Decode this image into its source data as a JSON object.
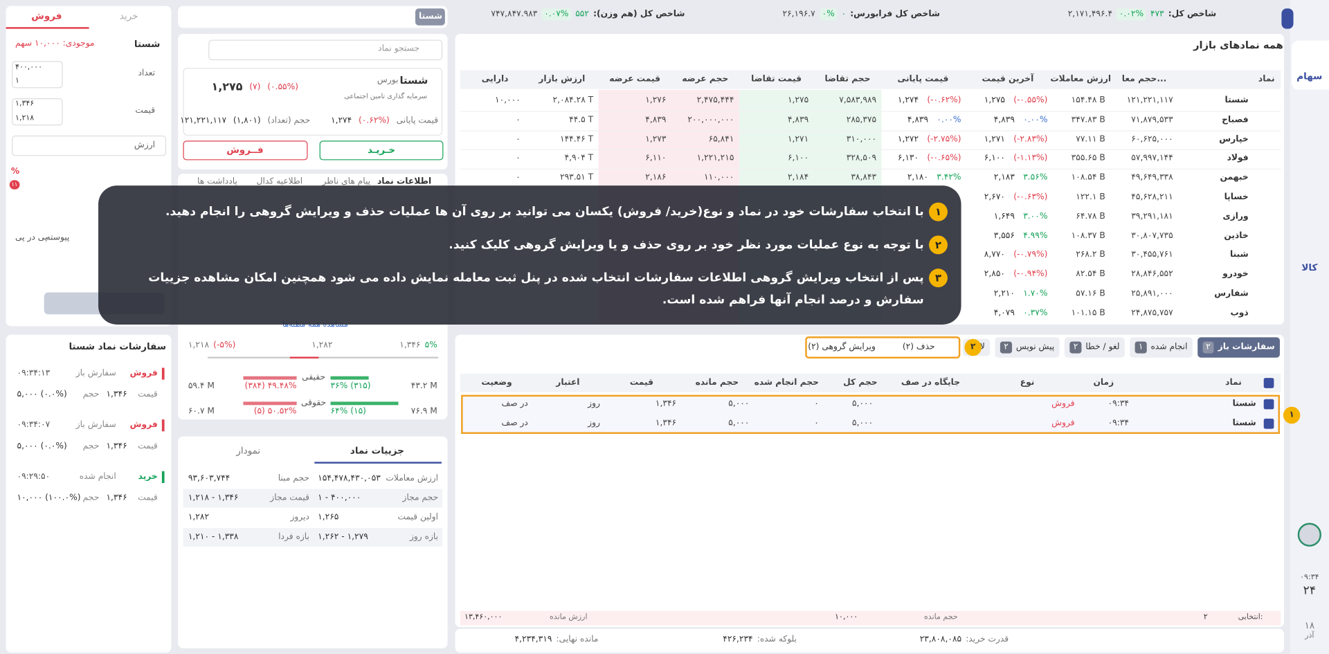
{
  "sidebar": {
    "stocks": "سهام",
    "commodity": "کالا",
    "time": "۰۹:۳۴",
    "day": "۲۴",
    "day2": "۱۸",
    "month": "آذر"
  },
  "indices": [
    {
      "label": "شاخص کل:",
      "change": "۴۷۳",
      "percent": "۰.۰۲%",
      "value": "۲,۱۷۱,۴۹۶.۴"
    },
    {
      "label": "شاخص کل فرابورس:",
      "change": "۰",
      "percent": "۰%",
      "value": "۲۶,۱۹۶.۷"
    },
    {
      "label": "شاخص کل (هم وزن):",
      "change": "۵۵۲",
      "percent": "۰.۰۷%",
      "value": "۷۴۷,۸۴۷.۹۸۳"
    }
  ],
  "market": {
    "title": "همه نمادهای بازار",
    "headers": [
      "نماد",
      "حجم معا...",
      "ارزش معاملات",
      "آخرین قیمت",
      "قیمت پایانی",
      "حجم تقاضا",
      "قیمت تقاضا",
      "حجم عرضه",
      "قیمت عرضه",
      "ارزش بازار",
      "دارایی"
    ],
    "rows": [
      [
        "شستا",
        "۱۲۱,۲۲۱,۱۱۷",
        "۱۵۴.۴۸ B",
        [
          "۱,۲۷۵",
          "(۰.۵۵%-)"
        ],
        [
          "۱,۲۷۴",
          "(۰.۶۲%-)"
        ],
        "۷,۵۸۳,۹۸۹",
        "۱,۲۷۵",
        "۲,۴۷۵,۴۴۴",
        "۱,۲۷۶",
        "۲,۰۸۴.۲۸ T",
        "۱۰,۰۰۰"
      ],
      [
        "فصباح",
        "۷۱,۸۷۹,۵۳۳",
        "۳۴۷.۸۳ B",
        [
          "۴,۸۳۹",
          "۰.۰۰%"
        ],
        [
          "۴,۸۳۹",
          "۰.۰۰%"
        ],
        "۲۸۵,۳۷۵",
        "۴,۸۳۹",
        "۲۰۰,۰۰۰,۰۰۰",
        "۴,۸۳۹",
        "۴۴.۵ T",
        "۰"
      ],
      [
        "خپارس",
        "۶۰,۶۲۵,۰۰۰",
        "۷۷.۱۱ B",
        [
          "۱,۲۷۱",
          "(۲.۸۳%-)"
        ],
        [
          "۱,۲۷۲",
          "(۲.۷۵%-)"
        ],
        "۳۱۰,۰۰۰",
        "۱,۲۷۱",
        "۶۵,۸۴۱",
        "۱,۲۷۳",
        "۱۴۴.۴۶ T",
        "۰"
      ],
      [
        "فولاد",
        "۵۷,۹۹۷,۱۴۴",
        "۳۵۵.۶۵ B",
        [
          "۶,۱۰۰",
          "(۱.۱۳%-)"
        ],
        [
          "۶,۱۳۰",
          "(۰.۶۵%-)"
        ],
        "۳۲۸,۵۰۹",
        "۶,۱۰۰",
        "۱,۲۲۱,۲۱۵",
        "۶,۱۱۰",
        "۴,۹۰۴ T",
        "۰"
      ],
      [
        "خبهمن",
        "۴۹,۶۴۹,۳۳۸",
        "۱۰۸.۵۴ B",
        [
          "۲,۱۸۳",
          "۳.۵۶%"
        ],
        [
          "۲,۱۸۰",
          "۳.۴۲%"
        ],
        "۳۸,۸۴۳",
        "۲,۱۸۴",
        "۱۱۰,۰۰۰",
        "۲,۱۸۶",
        "۲۹۳.۵۱ T",
        "۰"
      ],
      [
        "خساپا",
        "۴۵,۶۲۸,۲۱۱",
        "۱۲۲.۱ B",
        [
          "۲,۶۷۰",
          "(۰.۶۳%-)"
        ]
      ],
      [
        "ورازی",
        "۳۹,۲۹۱,۱۸۱",
        "۶۴.۷۸ B",
        [
          "۱,۶۴۹",
          "۳.۰۰%"
        ]
      ],
      [
        "خاذین",
        "۳۰,۸۰۷,۷۳۵",
        "۱۰۸.۳۷ B",
        [
          "۳,۵۵۶",
          "۴.۹۹%"
        ]
      ],
      [
        "شبنا",
        "۳۰,۴۵۵,۷۶۱",
        "۲۶۸.۲ B",
        [
          "۸,۷۷۰",
          "(۰.۷۹%-)"
        ]
      ],
      [
        "خودرو",
        "۲۸,۸۴۶,۵۵۲",
        "۸۲.۵۴ B",
        [
          "۲,۸۵۰",
          "(۰.۹۴%-)"
        ]
      ],
      [
        "شفارس",
        "۲۵,۸۹۱,۰۰۰",
        "۵۷.۱۶ B",
        [
          "۲,۲۱۰",
          "۱.۷۰%"
        ]
      ],
      [
        "ذوب",
        "۲۴,۸۷۵,۷۵۷",
        "۱۰۱.۱۵ B",
        [
          "۴,۰۷۹",
          "۰.۳۷%"
        ]
      ]
    ]
  },
  "overlay": {
    "steps": [
      {
        "number": "۱",
        "text": "با انتخاب سفارشات خود در نماد و نوع(خرید/ فروش) یکسان می توانید بر روی آن ها عملیات حذف و ویرایش گروهی را انجام دهید."
      },
      {
        "number": "۲",
        "text": "با توجه به نوع عملیات مورد نظر خود بر روی حذف و یا ویرایش گروهی کلیک کنید."
      },
      {
        "number": "۳",
        "text": "پس از انتخاب ویرایش گروهی اطلاعات سفارشات انتخاب شده در پنل ثبت معامله نمایش داده می شود همچنین امکان مشاهده جزییات سفارش و درصد انجام آنها فراهم شده است."
      }
    ]
  },
  "order_form": {
    "tabs": [
      "فروش",
      "خرید"
    ],
    "symbol": "شستا",
    "stock": "موجودی: ۱۰,۰۰۰ سهم",
    "quantity_label": "تعداد",
    "quantity_max": "۴۰۰,۰۰۰",
    "quantity_min": "۱",
    "price_label": "قیمت",
    "price_max": "۱,۳۴۶",
    "price_min": "۱,۲۱۸",
    "value_label": "ارزش",
    "percent": "%",
    "slider": "۱۱",
    "modes": [
      "پیوسته",
      "پی در پی"
    ]
  },
  "symbol_orders": {
    "title": "سفارشات نماد شستا",
    "price_label": "قیمت",
    "volume_label": "حجم",
    "items": [
      {
        "side": "فروش",
        "status": "سفارش باز",
        "time": "۰۹:۳۴:۱۳",
        "price": "۱,۳۴۶",
        "volume": "۵,۰۰۰ (۰.۰%)"
      },
      {
        "side": "فروش",
        "status": "سفارش باز",
        "time": "۰۹:۳۴:۰۷",
        "price": "۱,۳۴۶",
        "volume": "۵,۰۰۰ (۰.۰%)"
      },
      {
        "side": "خرید",
        "status": "انجام شده",
        "time": "۰۹:۲۹:۵۰",
        "price": "۱,۳۴۶",
        "volume": "۱۰,۰۰۰ (۱۰۰.۰%)"
      }
    ]
  },
  "symbol": {
    "tab": "شستا",
    "search": "جستجو نماد",
    "name": "شستا",
    "market": "بورس",
    "company": "سرمایه گذاری تامین اجتماعی",
    "price": "۱,۲۷۵",
    "change": "(۷)",
    "percent": "(۰.۵۵%)",
    "close_label": "قیمت پایانی",
    "close_percent": "(۰.۶۲%)",
    "close": "۱,۲۷۴",
    "volume_label": "حجم (تعداد)",
    "volume_count": "(۱,۸۰۱)",
    "volume": "۱۲۱,۲۲۱,۱۱۷",
    "buy": "خـریـد",
    "sell": "فــروش",
    "tabs": [
      "اطلاعات نماد",
      "پیام های ناظر",
      "اطلاعیه کدال",
      "یادداشت ها"
    ],
    "see_all": "مشاهده همه مظنه‌ها",
    "range": {
      "high_pct": "۵%",
      "high": "۱,۳۴۶",
      "mid": "۱,۲۸۲",
      "low": "۱,۲۱۸",
      "low_pct": "(۵%-)"
    },
    "traders": [
      {
        "label": "حقیقی",
        "buy": "۳۶% (۳۱۵)",
        "sell": "(۳۸۴) ۴۹.۴۸%",
        "buy_value": "۴۳.۲ M",
        "sell_value": "۵۹.۴ M"
      },
      {
        "label": "حقوقی",
        "buy": "۶۴% (۱۵)",
        "sell": "(۵) ۵۰.۵۲%",
        "buy_value": "۷۶.۹ M",
        "sell_value": "۶۰.۷ M"
      }
    ]
  },
  "details": {
    "tabs": [
      "جزییات نماد",
      "نمودار"
    ],
    "rows": [
      [
        "ارزش معاملات",
        "۱۵۴,۴۷۸,۴۳۰,۰۵۳",
        "حجم مبنا",
        "۹۳,۶۰۳,۷۴۴"
      ],
      [
        "حجم مجاز",
        "۱ - ۴۰۰,۰۰۰",
        "قیمت مجاز",
        "۱,۲۱۸ - ۱,۳۴۶"
      ],
      [
        "اولین قیمت",
        "۱,۲۶۵",
        "دیروز",
        "۱,۲۸۲"
      ],
      [
        "بازه روز",
        "۱,۲۶۲ - ۱,۲۷۹",
        "بازه فردا",
        "۱,۲۱۰ - ۱,۳۳۸"
      ]
    ]
  },
  "orders": {
    "tabs": [
      {
        "label": "سفارشات باز",
        "count": "۲"
      },
      {
        "label": "انجام شده",
        "count": "۱"
      },
      {
        "label": "لغو / خطا",
        "count": "۲"
      },
      {
        "label": "پیش نویس",
        "count": "۲"
      },
      {
        "label": "لانچر"
      }
    ],
    "step_badge": "۲",
    "delete": "حذف (۲)",
    "group_edit": "ویرایش گروهی (۲)",
    "row_badge": "۱",
    "headers": [
      "نماد",
      "زمان",
      "نوع",
      "جایگاه در صف",
      "حجم کل",
      "حجم انجام شده",
      "حجم مانده",
      "قیمت",
      "اعتبار",
      "وضعیت"
    ],
    "rows": [
      [
        "شستا",
        "۰۹:۳۴",
        "فروش",
        "۵,۰۰۰",
        "۰",
        "۵,۰۰۰",
        "۱,۳۴۶",
        "روز",
        "در صف"
      ],
      [
        "شستا",
        "۰۹:۳۴",
        "فروش",
        "۵,۰۰۰",
        "۰",
        "۵,۰۰۰",
        "۱,۳۴۶",
        "روز",
        "در صف"
      ]
    ],
    "footer": {
      "selected_label": "انتخابی:",
      "selected": "۲",
      "remaining_volume_label": "حجم مانده",
      "remaining_volume": "۱۰,۰۰۰",
      "remaining_value_label": "ارزش مانده",
      "remaining_value": "۱۳,۴۶۰,۰۰۰"
    }
  },
  "account": {
    "buying_power_label": "قدرت خرید:",
    "buying_power": "۲۳,۸۰۸,۰۸۵",
    "blocked_label": "بلوکه شده:",
    "blocked": "۴۲۶,۲۳۴",
    "final_label": "مانده نهایی:",
    "final": "۴,۲۳۴,۳۱۹"
  }
}
